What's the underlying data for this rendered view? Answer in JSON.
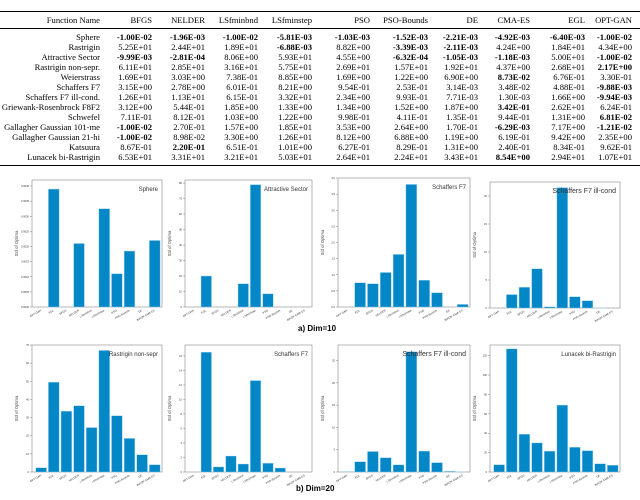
{
  "table": {
    "headers": [
      "Function Name",
      "BFGS",
      "NELDER",
      "LSfminbnd",
      "LSfminstep",
      "PSO",
      "PSO-Bounds",
      "DE",
      "CMA-ES",
      "EGL",
      "OPT-GAN"
    ],
    "rows": [
      {
        "name": "Sphere",
        "cells": [
          {
            "v": "-1.00E-02",
            "b": true
          },
          {
            "v": "-1.96E-03",
            "b": true
          },
          {
            "v": "-1.00E-02",
            "b": true
          },
          {
            "v": "-5.81E-03",
            "b": true
          },
          {
            "v": "-1.03E-03",
            "b": true
          },
          {
            "v": "-1.52E-03",
            "b": true
          },
          {
            "v": "-2.21E-03",
            "b": true
          },
          {
            "v": "-4.92E-03",
            "b": true
          },
          {
            "v": "-6.40E-03",
            "b": true
          },
          {
            "v": "-1.00E-02",
            "b": true
          }
        ]
      },
      {
        "name": "Rastrigin",
        "cells": [
          {
            "v": "5.25E+01"
          },
          {
            "v": "2.44E+01"
          },
          {
            "v": "1.89E+01"
          },
          {
            "v": "-6.88E-03",
            "b": true
          },
          {
            "v": "8.82E+00"
          },
          {
            "v": "-3.39E-03",
            "b": true
          },
          {
            "v": "-2.11E-03",
            "b": true
          },
          {
            "v": "4.24E+00"
          },
          {
            "v": "1.84E+01"
          },
          {
            "v": "4.34E+00"
          }
        ]
      },
      {
        "name": "Attractive Sector",
        "cells": [
          {
            "v": "-9.99E-03",
            "b": true
          },
          {
            "v": "-2.81E-04",
            "b": true
          },
          {
            "v": "8.06E+00"
          },
          {
            "v": "5.93E+01"
          },
          {
            "v": "4.55E+00"
          },
          {
            "v": "-6.32E-04",
            "b": true
          },
          {
            "v": "-1.05E-03",
            "b": true
          },
          {
            "v": "-1.18E-03",
            "b": true
          },
          {
            "v": "5.00E+01"
          },
          {
            "v": "-1.00E-02",
            "b": true
          }
        ]
      },
      {
        "name": "Rastrigin non-sepr.",
        "cells": [
          {
            "v": "6.11E+01"
          },
          {
            "v": "2.85E+01"
          },
          {
            "v": "3.16E+01"
          },
          {
            "v": "5.75E+01"
          },
          {
            "v": "2.69E+01"
          },
          {
            "v": "1.57E+01"
          },
          {
            "v": "1.92E+01"
          },
          {
            "v": "4.37E+00"
          },
          {
            "v": "2.68E+01"
          },
          {
            "v": "2.17E+00",
            "b": true
          }
        ]
      },
      {
        "name": "Weierstrass",
        "cells": [
          {
            "v": "1.69E+01"
          },
          {
            "v": "3.03E+00"
          },
          {
            "v": "7.38E-01"
          },
          {
            "v": "8.85E+00"
          },
          {
            "v": "1.69E+00"
          },
          {
            "v": "1.22E+00"
          },
          {
            "v": "6.90E+00"
          },
          {
            "v": "8.73E-02",
            "b": true
          },
          {
            "v": "6.76E-01"
          },
          {
            "v": "3.30E-01"
          }
        ]
      },
      {
        "name": "Schaffers F7",
        "cells": [
          {
            "v": "3.15E+00"
          },
          {
            "v": "2.78E+00"
          },
          {
            "v": "6.01E-01"
          },
          {
            "v": "8.21E+00"
          },
          {
            "v": "9.54E-01"
          },
          {
            "v": "2.53E-01"
          },
          {
            "v": "3.14E-03"
          },
          {
            "v": "3.48E-02"
          },
          {
            "v": "4.88E-01"
          },
          {
            "v": "-9.88E-03",
            "b": true
          }
        ]
      },
      {
        "name": "Schaffers F7 ill-cond.",
        "cells": [
          {
            "v": "1.26E+01"
          },
          {
            "v": "1.13E+01"
          },
          {
            "v": "6.15E-01"
          },
          {
            "v": "3.32E+01"
          },
          {
            "v": "2.34E+00"
          },
          {
            "v": "9.93E-01"
          },
          {
            "v": "7.71E-03"
          },
          {
            "v": "1.30E-03"
          },
          {
            "v": "1.66E+00"
          },
          {
            "v": "-9.94E-03",
            "b": true
          }
        ]
      },
      {
        "name": "Griewank-Rosenbrock F8F2",
        "cells": [
          {
            "v": "3.12E+00"
          },
          {
            "v": "5.44E-01"
          },
          {
            "v": "1.85E+00"
          },
          {
            "v": "1.33E+00"
          },
          {
            "v": "1.34E+00"
          },
          {
            "v": "1.52E+00"
          },
          {
            "v": "1.87E+00"
          },
          {
            "v": "3.42E-01",
            "b": true
          },
          {
            "v": "2.62E+01"
          },
          {
            "v": "6.24E-01"
          }
        ]
      },
      {
        "name": "Schwefel",
        "cells": [
          {
            "v": "7.11E-01"
          },
          {
            "v": "8.12E-01"
          },
          {
            "v": "1.03E+00"
          },
          {
            "v": "1.22E+00"
          },
          {
            "v": "9.98E-01"
          },
          {
            "v": "4.11E-01"
          },
          {
            "v": "1.35E-01"
          },
          {
            "v": "9.44E-01"
          },
          {
            "v": "1.31E+00"
          },
          {
            "v": "6.81E-02",
            "b": true
          }
        ]
      },
      {
        "name": "Gallagher Gaussian 101-me",
        "cells": [
          {
            "v": "-1.00E-02",
            "b": true
          },
          {
            "v": "2.70E-01"
          },
          {
            "v": "1.57E+00"
          },
          {
            "v": "1.85E+01"
          },
          {
            "v": "3.53E+00"
          },
          {
            "v": "2.64E+00"
          },
          {
            "v": "1.70E-01"
          },
          {
            "v": "-6.29E-03",
            "b": true
          },
          {
            "v": "7.17E+00"
          },
          {
            "v": "-1.21E-02",
            "b": true
          }
        ]
      },
      {
        "name": "Gallagher Gaussian 21-hi",
        "cells": [
          {
            "v": "-1.00E-02",
            "b": true
          },
          {
            "v": "8.98E-02"
          },
          {
            "v": "3.30E+00"
          },
          {
            "v": "1.26E+01"
          },
          {
            "v": "8.12E+00"
          },
          {
            "v": "6.88E+00"
          },
          {
            "v": "1.19E+00"
          },
          {
            "v": "6.19E-01"
          },
          {
            "v": "9.42E+00"
          },
          {
            "v": "2.35E+00"
          }
        ]
      },
      {
        "name": "Katsuura",
        "cells": [
          {
            "v": "8.67E-01"
          },
          {
            "v": "2.20E-01",
            "b": true
          },
          {
            "v": "6.51E-01"
          },
          {
            "v": "1.01E+00"
          },
          {
            "v": "6.27E-01"
          },
          {
            "v": "8.29E-01"
          },
          {
            "v": "1.31E+00"
          },
          {
            "v": "2.40E-01"
          },
          {
            "v": "8.34E-01"
          },
          {
            "v": "9.62E-01"
          }
        ]
      },
      {
        "name": "Lunacek bi-Rastrigin",
        "cells": [
          {
            "v": "6.53E+01"
          },
          {
            "v": "3.31E+01"
          },
          {
            "v": "3.21E+01"
          },
          {
            "v": "5.03E+01"
          },
          {
            "v": "2.64E+01"
          },
          {
            "v": "2.24E+01"
          },
          {
            "v": "3.43E+01"
          },
          {
            "v": "8.54E+00",
            "b": true
          },
          {
            "v": "2.94E+01"
          },
          {
            "v": "1.07E+01"
          }
        ]
      }
    ]
  },
  "captions": {
    "dim10": "a) Dim=10",
    "dim20": "b) Dim=20"
  },
  "chart_data": [
    {
      "type": "bar",
      "title": "Sphere",
      "ylabel": "Std of Optima",
      "ylim": [
        0,
        0.0042
      ],
      "yticks": [
        "0.0000",
        "0.0005",
        "0.0010",
        "0.0015",
        "0.0020",
        "0.0025",
        "0.0030",
        "0.0035",
        "0.0040"
      ],
      "ytick_values": [
        0,
        0.0005,
        0.001,
        0.0015,
        0.002,
        0.0025,
        0.003,
        0.0035,
        0.004
      ],
      "categories": [
        "OPT-GAN",
        "EGL",
        "BFGS",
        "NELDER",
        "LSfminbnd",
        "LSfminstep",
        "PSO",
        "PSO-Bounds",
        "DE",
        "BIPOP-CMA-ES"
      ],
      "values": [
        0,
        0.0039,
        0,
        0.0021,
        0,
        0.00325,
        0.0011,
        0.00185,
        0,
        0.0022
      ]
    },
    {
      "type": "bar",
      "title": "Attractive Sector",
      "ylabel": "Std of Optima",
      "ylim": [
        0,
        82
      ],
      "yticks": [
        "0",
        "10",
        "20",
        "30",
        "40",
        "50",
        "60",
        "70",
        "80"
      ],
      "ytick_values": [
        0,
        10,
        20,
        30,
        40,
        50,
        60,
        70,
        80
      ],
      "categories": [
        "OPT-GAN",
        "EGL",
        "BFGS",
        "NELDER",
        "LSfminbnd",
        "LSfminstep",
        "PSO",
        "PSO-Bounds",
        "DE",
        "BIPOP-CMA-ES"
      ],
      "values": [
        0,
        20,
        0,
        0,
        15,
        79,
        8.5,
        0,
        0,
        0
      ]
    },
    {
      "type": "bar",
      "title": "Schaffers F7",
      "ylabel": "Std of Optima",
      "ylim": [
        0,
        4
      ],
      "yticks": [
        "0.0",
        "0.5",
        "1.0",
        "1.5",
        "2.0",
        "2.5",
        "3.0",
        "3.5",
        "4.0"
      ],
      "ytick_values": [
        0,
        0.5,
        1,
        1.5,
        2,
        2.5,
        3,
        3.5,
        4
      ],
      "categories": [
        "OPT-GAN",
        "EGL",
        "BFGS",
        "NELDER",
        "LSfminbnd",
        "LSfminstep",
        "PSO",
        "PSO-Bounds",
        "DE",
        "BIPOP-CMA-ES"
      ],
      "values": [
        0,
        0.75,
        0.72,
        1.07,
        1.63,
        3.8,
        0.83,
        0.44,
        0,
        0.08
      ]
    },
    {
      "type": "bar",
      "title": "Schaffers F7 ill-cond",
      "ylabel": "Std of Optima",
      "ylim": [
        0,
        22.5
      ],
      "yticks": [
        "0",
        "5",
        "10",
        "15",
        "20"
      ],
      "ytick_values": [
        0,
        5,
        10,
        15,
        20
      ],
      "categories": [
        "OPT-GAN",
        "EGL",
        "BFGS",
        "NELDER",
        "LSfminbnd",
        "LSfminstep",
        "PSO",
        "PSO-Bounds",
        "DE",
        "BIPOP-CMA-ES"
      ],
      "values": [
        0,
        2.4,
        3.7,
        7.0,
        0.2,
        21.5,
        2.0,
        1.3,
        0.05,
        0
      ]
    },
    {
      "type": "bar",
      "title": "Rastrigin non-sepr",
      "ylabel": "Std of Optima",
      "ylim": [
        0,
        70
      ],
      "yticks": [
        "0",
        "10",
        "20",
        "30",
        "40",
        "50",
        "60",
        "70"
      ],
      "ytick_values": [
        0,
        10,
        20,
        30,
        40,
        50,
        60,
        70
      ],
      "categories": [
        "OPT-GAN",
        "EGL",
        "BFGS",
        "NELDER",
        "LSfminbnd",
        "LSfminstep",
        "PSO",
        "PSO-Bounds",
        "DE",
        "BIPOP-CMA-ES"
      ],
      "values": [
        2.3,
        49.5,
        33.5,
        36.5,
        24.5,
        67,
        31,
        18.5,
        9.5,
        4
      ]
    },
    {
      "type": "bar",
      "title": "Schaffers F7",
      "ylabel": "Std of Optima",
      "ylim": [
        0,
        17.5
      ],
      "yticks": [
        "0",
        "2",
        "4",
        "6",
        "8",
        "10",
        "12",
        "14",
        "16"
      ],
      "ytick_values": [
        0,
        2,
        4,
        6,
        8,
        10,
        12,
        14,
        16
      ],
      "categories": [
        "OPT-GAN",
        "EGL",
        "BFGS",
        "NELDER",
        "LSfminbnd",
        "LSfminstep",
        "PSO",
        "PSO-Bounds",
        "DE",
        "BIPOP-CMA-ES"
      ],
      "values": [
        0,
        16.5,
        0.7,
        2.2,
        1.1,
        12.6,
        1.2,
        0.55,
        0,
        0
      ]
    },
    {
      "type": "bar",
      "title": "Schaffers F7 ill-cond",
      "ylabel": "Std of Optima",
      "ylim": [
        0,
        28.5
      ],
      "yticks": [
        "0",
        "5",
        "10",
        "15",
        "20",
        "25"
      ],
      "ytick_values": [
        0,
        5,
        10,
        15,
        20,
        25
      ],
      "categories": [
        "OPT-GAN",
        "EGL",
        "BFGS",
        "NELDER",
        "LSfminbnd",
        "LSfminstep",
        "PSO",
        "PSO-Bounds",
        "DE",
        "BIPOP-CMA-ES"
      ],
      "values": [
        0.1,
        2.3,
        4.6,
        3.2,
        1.6,
        27,
        4.7,
        2.1,
        0.15,
        0.03
      ]
    },
    {
      "type": "bar",
      "title": "Lunacek bi-Rastrigin",
      "ylabel": "Std of Optima",
      "ylim": [
        0,
        131
      ],
      "yticks": [
        "0",
        "20",
        "40",
        "60",
        "80",
        "100",
        "120"
      ],
      "ytick_values": [
        0,
        20,
        40,
        60,
        80,
        100,
        120
      ],
      "categories": [
        "OPT-GAN",
        "EGL",
        "BFGS",
        "NELDER",
        "LSfminbnd",
        "LSfminstep",
        "PSO",
        "PSO-Bounds",
        "DE",
        "BIPOP-CMA-ES"
      ],
      "values": [
        7.5,
        127,
        39,
        30,
        21.5,
        69,
        25.5,
        22,
        8.5,
        7
      ]
    }
  ],
  "colors": {
    "bar": "#0487c6"
  }
}
